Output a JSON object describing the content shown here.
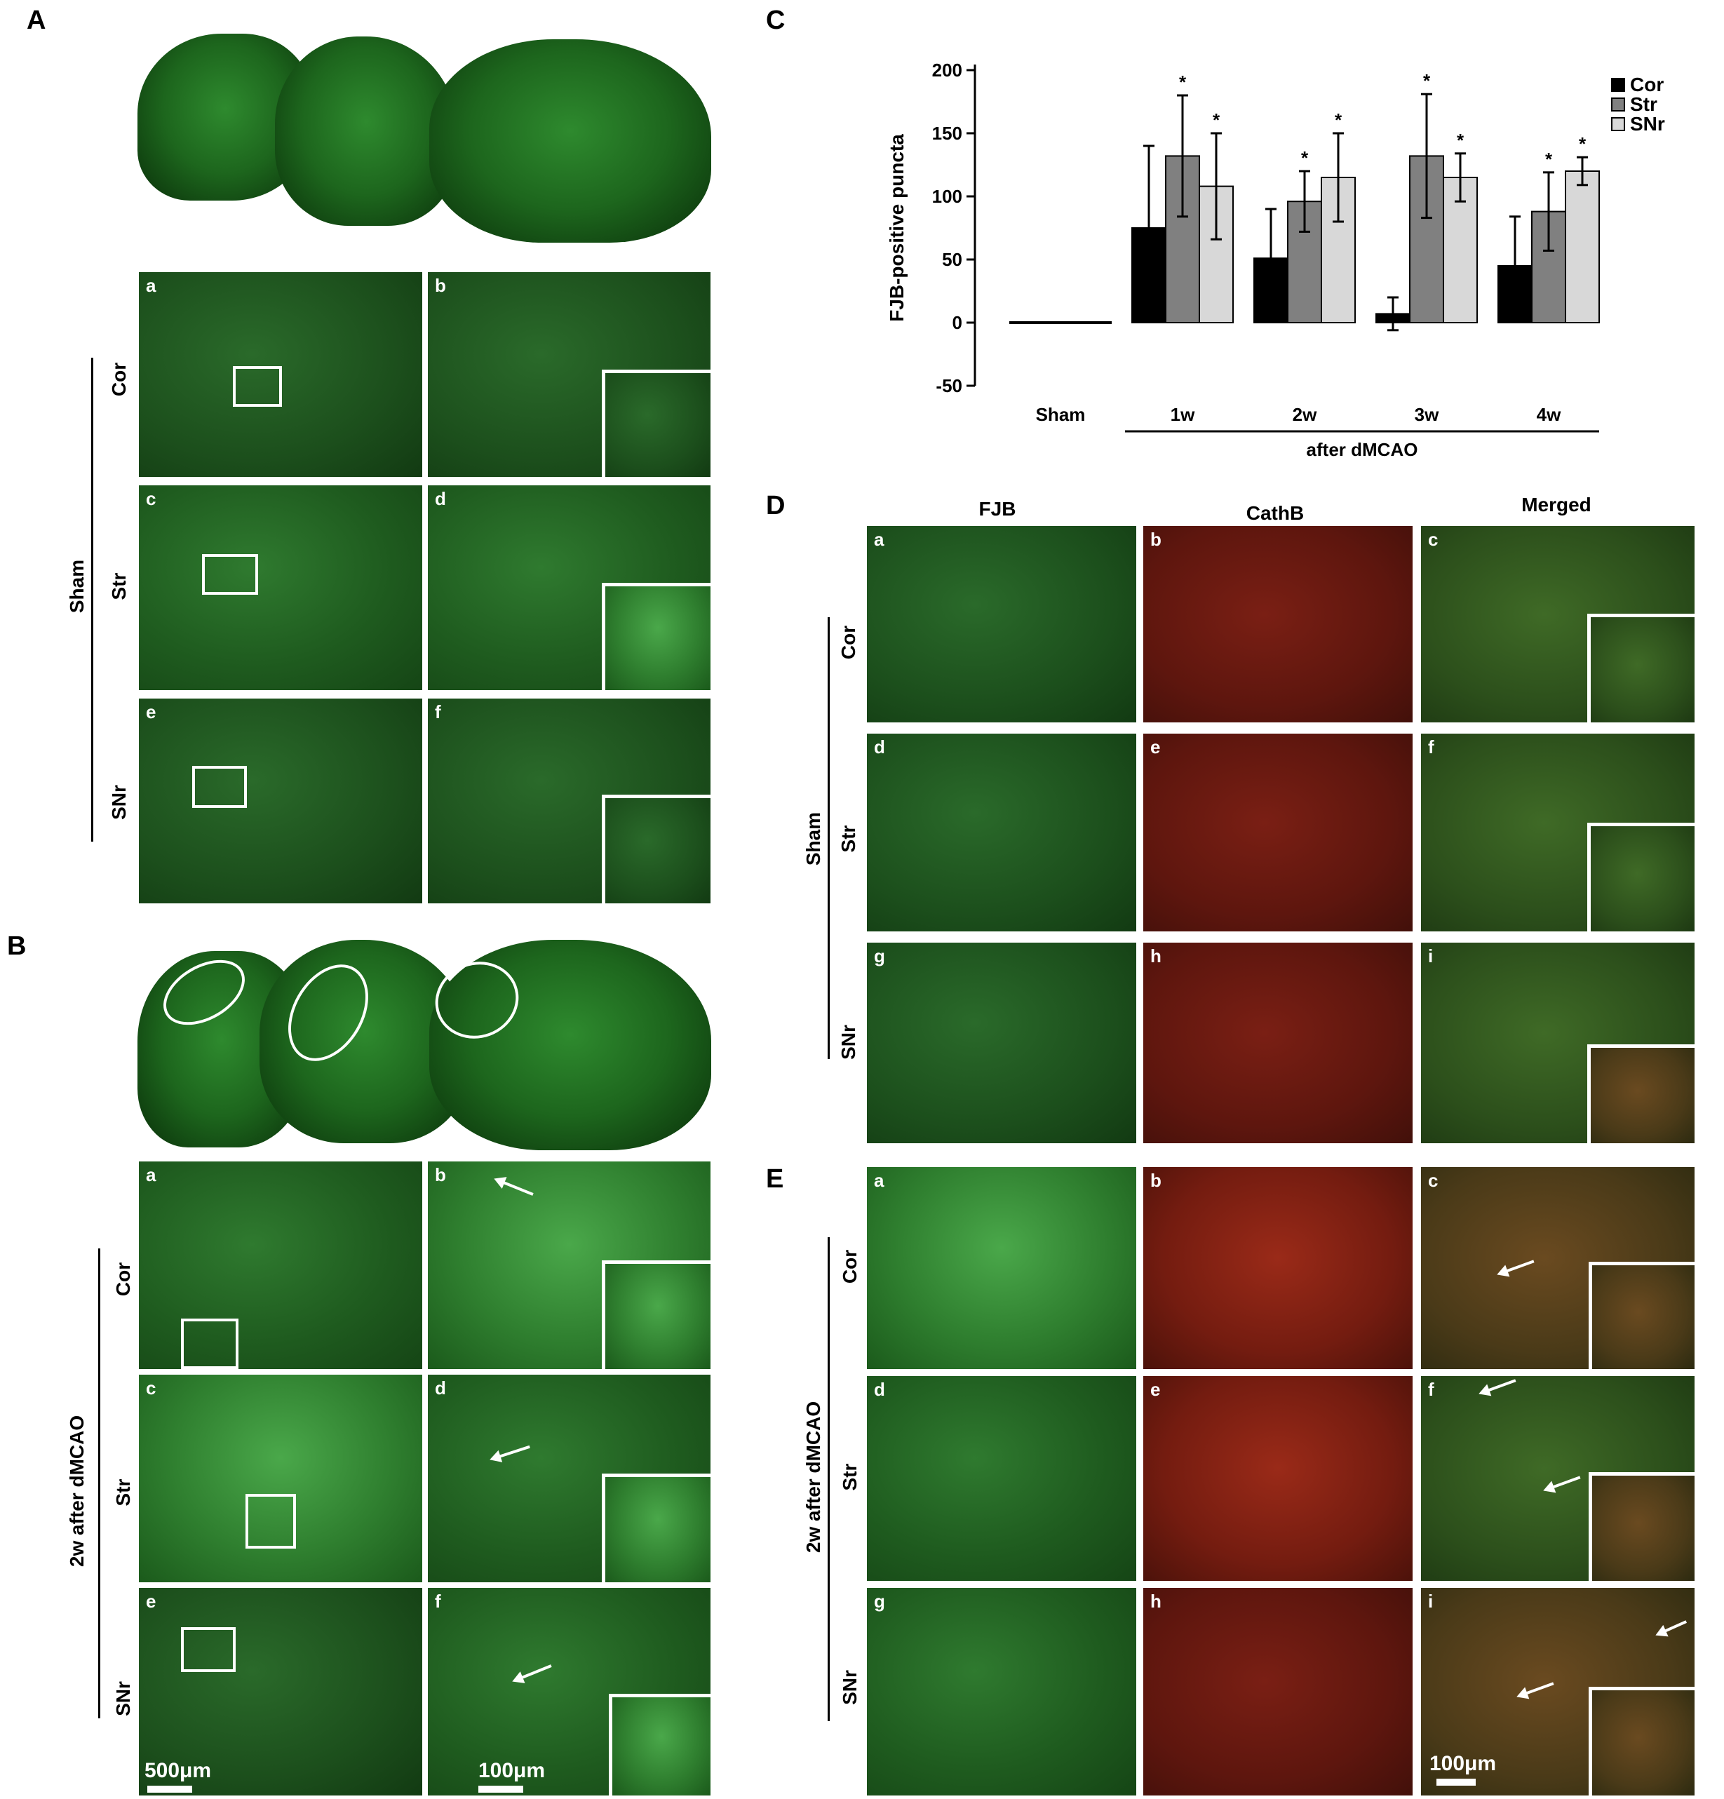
{
  "panel_labels": {
    "A": "A",
    "B": "B",
    "C": "C",
    "D": "D",
    "E": "E"
  },
  "panel_A": {
    "group": "Sham",
    "rows": [
      "Cor",
      "Str",
      "SNr"
    ],
    "subpanels": [
      "a",
      "b",
      "c",
      "d",
      "e",
      "f"
    ]
  },
  "panel_B": {
    "group": "2w after dMCAO",
    "rows": [
      "Cor",
      "Str",
      "SNr"
    ],
    "subpanels": [
      "a",
      "b",
      "c",
      "d",
      "e",
      "f"
    ],
    "scale_left": "500μm",
    "scale_right": "100μm"
  },
  "panel_D": {
    "columns": [
      "FJB",
      "CathB",
      "Merged"
    ],
    "group": "Sham",
    "rows": [
      "Cor",
      "Str",
      "SNr"
    ],
    "subpanels": [
      "a",
      "b",
      "c",
      "d",
      "e",
      "f",
      "g",
      "h",
      "i"
    ]
  },
  "panel_E": {
    "group": "2w after dMCAO",
    "rows": [
      "Cor",
      "Str",
      "SNr"
    ],
    "subpanels": [
      "a",
      "b",
      "c",
      "d",
      "e",
      "f",
      "g",
      "h",
      "i"
    ],
    "scale": "100μm"
  },
  "chart_data": {
    "type": "bar",
    "ylabel": "FJB-positive puncta",
    "xlabel": "after dMCAO",
    "categories": [
      "Sham",
      "1w",
      "2w",
      "3w",
      "4w"
    ],
    "ylim": [
      -50,
      200
    ],
    "yticks": [
      "200",
      "150",
      "100",
      "50",
      "0",
      "-50"
    ],
    "legend_position": "top-right",
    "series": [
      {
        "name": "Cor",
        "color": "#000000",
        "values": [
          0,
          75,
          51,
          7,
          45
        ],
        "errors": [
          0,
          65,
          39,
          13,
          39
        ],
        "significant": [
          false,
          false,
          false,
          false,
          false
        ]
      },
      {
        "name": "Str",
        "color": "#808080",
        "values": [
          0,
          132,
          96,
          132,
          88
        ],
        "errors": [
          0,
          48,
          24,
          49,
          31
        ],
        "significant": [
          false,
          true,
          true,
          true,
          true
        ]
      },
      {
        "name": "SNr",
        "color": "#d8d8d8",
        "values": [
          0,
          108,
          115,
          115,
          120
        ],
        "errors": [
          0,
          42,
          35,
          19,
          11
        ],
        "significant": [
          false,
          true,
          true,
          true,
          true
        ]
      }
    ],
    "significance_marker": "*"
  }
}
